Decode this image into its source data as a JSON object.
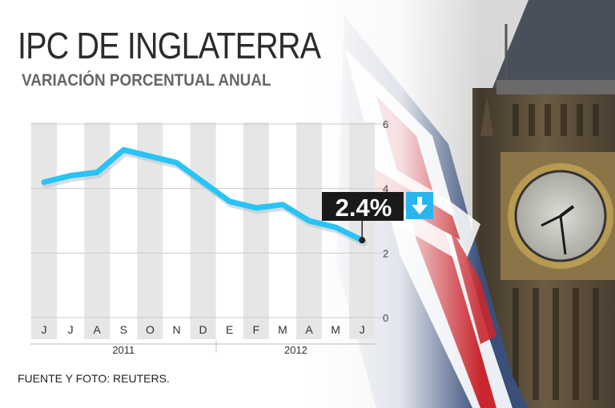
{
  "header": {
    "title": "IPC DE INGLATERRA",
    "subtitle": "VARIACIÓN PORCENTUAL ANUAL"
  },
  "footer": {
    "source": "FUENTE Y FOTO: REUTERS."
  },
  "callout": {
    "label": "2.4%",
    "direction_icon": "arrow-down-icon",
    "arrow_color": "#29b6f0"
  },
  "colors": {
    "line": "#29c4f5",
    "band": "#e6e6e6",
    "grid": "#cccccc",
    "callout_bg": "#1a1a1a"
  },
  "chart_data": {
    "type": "line",
    "title": "IPC DE INGLATERRA",
    "subtitle": "VARIACIÓN PORCENTUAL ANUAL",
    "categories": [
      "J",
      "J",
      "A",
      "S",
      "O",
      "N",
      "D",
      "E",
      "F",
      "M",
      "A",
      "M",
      "J"
    ],
    "years": [
      {
        "label": "2011",
        "from": 0,
        "to": 6
      },
      {
        "label": "2012",
        "from": 7,
        "to": 12
      }
    ],
    "series": [
      {
        "values": [
          4.2,
          4.4,
          4.5,
          5.2,
          5.0,
          4.8,
          4.2,
          3.6,
          3.4,
          3.5,
          3.0,
          2.8,
          2.4
        ]
      }
    ],
    "yticks": [
      0,
      2,
      4,
      6
    ],
    "ylim": [
      0,
      6
    ],
    "grid": true,
    "annotation": {
      "index": 12,
      "text": "2.4%"
    },
    "source": "FUENTE Y FOTO: REUTERS."
  }
}
